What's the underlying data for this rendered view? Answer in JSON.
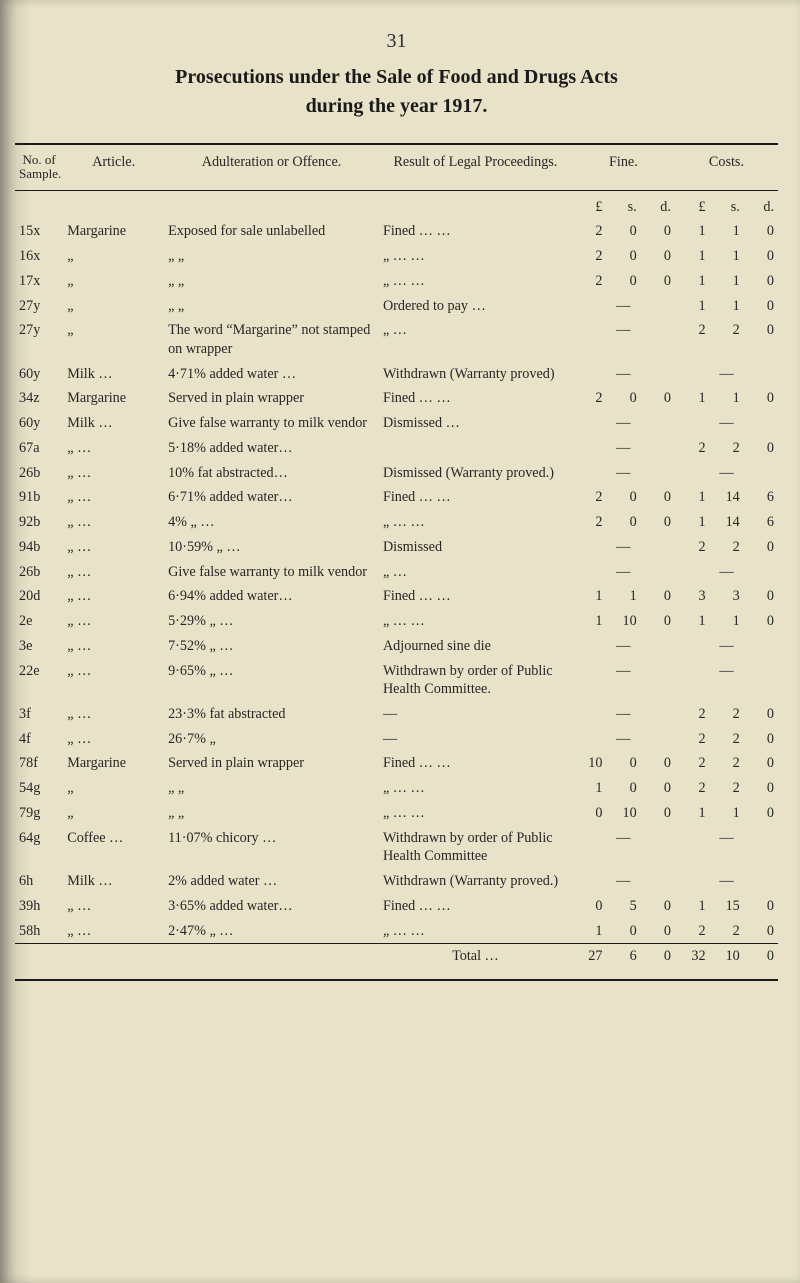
{
  "page_number": "31",
  "title_line1": "Prosecutions under the Sale of Food and Drugs Acts",
  "title_line2": "during the year 1917.",
  "headers": {
    "sample": "No. of Sample.",
    "article": "Article.",
    "adultration": "Adulteration or Offence.",
    "result": "Result of Legal Proceedings.",
    "fine": "Fine.",
    "costs": "Costs."
  },
  "money_sub": {
    "l": "£",
    "s": "s.",
    "d": "d."
  },
  "rows": [
    {
      "sample": "15x",
      "article": "Margarine",
      "adult": "Exposed for sale unlabelled",
      "result": "Fined   …   …",
      "fine": "2 0 0",
      "costs": "1 1 0"
    },
    {
      "sample": "16x",
      "article": "„",
      "adult": "„      „",
      "result": "„   …   …",
      "fine": "2 0 0",
      "costs": "1 1 0"
    },
    {
      "sample": "17x",
      "article": "„",
      "adult": "„      „",
      "result": "„   …   …",
      "fine": "2 0 0",
      "costs": "1 1 0"
    },
    {
      "sample": "27y",
      "article": "„",
      "adult": "„      „",
      "result": "Ordered to pay …",
      "fine": "—",
      "costs": "1 1 0"
    },
    {
      "sample": "27y",
      "article": "„",
      "adult": "The word “Margarine” not stamped on wrapper",
      "result": "„   …",
      "fine": "—",
      "costs": "2 2 0"
    },
    {
      "sample": "60y",
      "article": "Milk   …",
      "adult": "4·71% added water …",
      "result": "Withdrawn (Warranty proved)",
      "fine": "—",
      "costs": "—"
    },
    {
      "sample": "34z",
      "article": "Margarine",
      "adult": "Served in plain wrapper",
      "result": "Fined   …   …",
      "fine": "2 0 0",
      "costs": "1 1 0"
    },
    {
      "sample": "60y",
      "article": "Milk   …",
      "adult": "Give false warranty to milk vendor",
      "result": "Dismissed   …",
      "fine": "—",
      "costs": "—"
    },
    {
      "sample": "67a",
      "article": "„   …",
      "adult": "5·18% added water…",
      "result": "",
      "fine": "—",
      "costs": "2 2 0"
    },
    {
      "sample": "26b",
      "article": "„   …",
      "adult": "10% fat abstracted…",
      "result": "Dismissed (Warranty proved.)",
      "fine": "—",
      "costs": "—"
    },
    {
      "sample": "91b",
      "article": "„   …",
      "adult": "6·71% added water…",
      "result": "Fined   …   …",
      "fine": "2 0 0",
      "costs": "1 14 6"
    },
    {
      "sample": "92b",
      "article": "„   …",
      "adult": "4%     „   …",
      "result": "„   …   …",
      "fine": "2 0 0",
      "costs": "1 14 6"
    },
    {
      "sample": "94b",
      "article": "„   …",
      "adult": "10·59%  „   …",
      "result": "Dismissed",
      "fine": "—",
      "costs": "2 2 0"
    },
    {
      "sample": "26b",
      "article": "„   …",
      "adult": "Give false warranty to milk vendor",
      "result": "„   …",
      "fine": "—",
      "costs": "—"
    },
    {
      "sample": "20d",
      "article": "„   …",
      "adult": "6·94% added water…",
      "result": "Fined   …   …",
      "fine": "1 1 0",
      "costs": "3 3 0"
    },
    {
      "sample": "2e",
      "article": "„   …",
      "adult": "5·29%   „   …",
      "result": "„   …   …",
      "fine": "1 10 0",
      "costs": "1 1 0"
    },
    {
      "sample": "3e",
      "article": "„   …",
      "adult": "7·52%   „   …",
      "result": "Adjourned sine die",
      "fine": "—",
      "costs": "—"
    },
    {
      "sample": "22e",
      "article": "„   …",
      "adult": "9·65%   „   …",
      "result": "Withdrawn by order of Public Health Committee.",
      "fine": "—",
      "costs": "—"
    },
    {
      "sample": "3f",
      "article": "„   …",
      "adult": "23·3% fat abstracted",
      "result": "—",
      "fine": "—",
      "costs": "2 2 0"
    },
    {
      "sample": "4f",
      "article": "„   …",
      "adult": "26·7%   „",
      "result": "—",
      "fine": "—",
      "costs": "2 2 0"
    },
    {
      "sample": "78f",
      "article": "Margarine",
      "adult": "Served in plain wrapper",
      "result": "Fined   …   …",
      "fine": "10 0 0",
      "costs": "2 2 0"
    },
    {
      "sample": "54g",
      "article": "„",
      "adult": "„      „",
      "result": "„   …   …",
      "fine": "1 0 0",
      "costs": "2 2 0"
    },
    {
      "sample": "79g",
      "article": "„",
      "adult": "„      „",
      "result": "„   …   …",
      "fine": "0 10 0",
      "costs": "1 1 0"
    },
    {
      "sample": "64g",
      "article": "Coffee …",
      "adult": "11·07% chicory   …",
      "result": "Withdrawn by order of Public Health Committee",
      "fine": "—",
      "costs": "—"
    },
    {
      "sample": "6h",
      "article": "Milk   …",
      "adult": "2% added water   …",
      "result": "Withdrawn (Warranty proved.)",
      "fine": "—",
      "costs": "—"
    },
    {
      "sample": "39h",
      "article": "„   …",
      "adult": "3·65% added water…",
      "result": "Fined   …   …",
      "fine": "0 5 0",
      "costs": "1 15 0"
    },
    {
      "sample": "58h",
      "article": "„   …",
      "adult": "2·47%   „   …",
      "result": "„   …   …",
      "fine": "1 0 0",
      "costs": "2 2 0"
    }
  ],
  "total": {
    "label": "Total   …",
    "fine": "27 6 0",
    "costs": "32 10 0"
  },
  "style": {
    "page_bg": "#e8e2c8",
    "text_color": "#262626",
    "rule_color": "#1a1a1a",
    "title_fontsize": 20,
    "body_fontsize": 14.2
  },
  "columns": {
    "sample_w": 44,
    "article_w": 92,
    "adult_w": 196,
    "result_w": 176,
    "fine_w": 94,
    "costs_w": 94
  }
}
